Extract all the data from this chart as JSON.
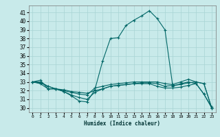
{
  "title": "",
  "xlabel": "Humidex (Indice chaleur)",
  "ylabel": "",
  "background_color": "#c8eaea",
  "grid_color": "#a8d4d4",
  "line_color": "#006666",
  "xlim": [
    -0.5,
    23.5
  ],
  "ylim": [
    29.5,
    41.8
  ],
  "yticks": [
    30,
    31,
    32,
    33,
    34,
    35,
    36,
    37,
    38,
    39,
    40,
    41
  ],
  "xticks": [
    0,
    1,
    2,
    3,
    4,
    5,
    6,
    7,
    8,
    9,
    10,
    11,
    12,
    13,
    14,
    15,
    16,
    17,
    18,
    19,
    20,
    21,
    22,
    23
  ],
  "series": [
    {
      "x": [
        0,
        1,
        2,
        3,
        4,
        5,
        6,
        7,
        8,
        9,
        10,
        11,
        12,
        13,
        14,
        15,
        16,
        17,
        18,
        19,
        20,
        21,
        22,
        23
      ],
      "y": [
        33.0,
        33.2,
        32.2,
        32.2,
        31.9,
        31.4,
        30.8,
        30.7,
        32.1,
        35.4,
        38.0,
        38.1,
        39.5,
        40.1,
        40.6,
        41.2,
        40.3,
        39.0,
        32.5,
        32.8,
        33.0,
        32.8,
        31.6,
        30.0
      ]
    },
    {
      "x": [
        0,
        1,
        2,
        3,
        4,
        5,
        6,
        7,
        8,
        9,
        10,
        11,
        12,
        13,
        14,
        15,
        16,
        17,
        18,
        19,
        20,
        21,
        22,
        23
      ],
      "y": [
        33.0,
        32.8,
        32.2,
        32.2,
        32.1,
        31.9,
        31.8,
        31.7,
        32.0,
        32.2,
        32.5,
        32.6,
        32.7,
        32.8,
        32.9,
        32.9,
        32.8,
        32.5,
        32.6,
        32.7,
        32.9,
        33.0,
        32.8,
        30.0
      ]
    },
    {
      "x": [
        0,
        1,
        2,
        3,
        4,
        5,
        6,
        7,
        8,
        9,
        10,
        11,
        12,
        13,
        14,
        15,
        16,
        17,
        18,
        19,
        20,
        21,
        22,
        23
      ],
      "y": [
        33.0,
        33.0,
        32.5,
        32.2,
        32.0,
        31.8,
        31.6,
        31.5,
        32.3,
        32.5,
        32.7,
        32.8,
        32.9,
        33.0,
        33.0,
        33.0,
        33.0,
        32.8,
        32.7,
        33.0,
        33.3,
        33.0,
        32.8,
        30.0
      ]
    },
    {
      "x": [
        0,
        1,
        2,
        3,
        4,
        5,
        6,
        7,
        8,
        9,
        10,
        11,
        12,
        13,
        14,
        15,
        16,
        17,
        18,
        19,
        20,
        21,
        22,
        23
      ],
      "y": [
        33.0,
        32.9,
        32.5,
        32.2,
        31.9,
        31.5,
        31.2,
        31.0,
        31.8,
        32.2,
        32.5,
        32.6,
        32.7,
        32.8,
        32.8,
        32.8,
        32.5,
        32.3,
        32.3,
        32.4,
        32.6,
        32.8,
        31.6,
        30.1
      ]
    }
  ]
}
